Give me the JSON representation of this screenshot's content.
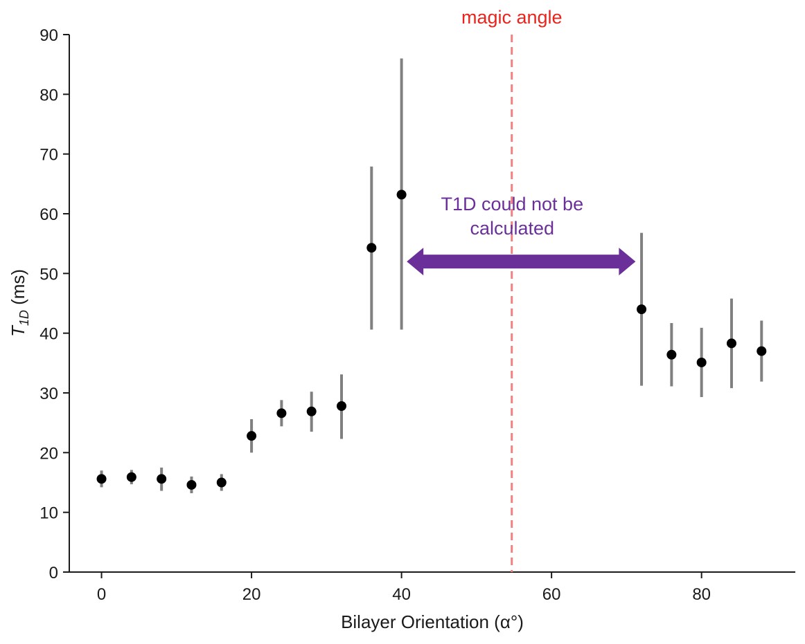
{
  "chart_data": {
    "type": "scatter",
    "xlabel": "Bilayer Orientation (α°)",
    "ylabel": "T",
    "ylabel_sub": "1D",
    "ylabel_unit": " (ms)",
    "xlim": [
      -4.3,
      92.5
    ],
    "ylim": [
      0,
      90
    ],
    "x_ticks": [
      0,
      20,
      40,
      60,
      80
    ],
    "y_ticks": [
      0,
      10,
      20,
      30,
      40,
      50,
      60,
      70,
      80,
      90
    ],
    "x": [
      0,
      4,
      8,
      12,
      16,
      20,
      24,
      28,
      32,
      36,
      40,
      72,
      76,
      80,
      84,
      88
    ],
    "y": [
      15.6,
      15.9,
      15.6,
      14.6,
      15.0,
      22.8,
      26.6,
      26.9,
      27.8,
      54.3,
      63.2,
      44.0,
      36.4,
      35.1,
      38.3,
      37.0
    ],
    "err_low": [
      14.2,
      14.7,
      13.6,
      13.2,
      13.6,
      20.0,
      24.4,
      23.5,
      22.3,
      40.6,
      40.6,
      31.2,
      31.1,
      29.3,
      30.8,
      31.9
    ],
    "err_high": [
      17.0,
      17.1,
      17.5,
      16.0,
      16.4,
      25.6,
      28.8,
      30.2,
      33.1,
      67.9,
      86.0,
      56.8,
      41.7,
      40.9,
      45.8,
      42.1
    ],
    "marker_color": "#000000",
    "errorbar_color": "#808080",
    "grid": false,
    "annotations": {
      "magic_angle": {
        "label": "magic angle",
        "x": 54.7,
        "color": "#f08080",
        "text_color": "#e8241d"
      },
      "range_arrow": {
        "x_from": 40.7,
        "x_to": 71.2,
        "y": 52,
        "color": "#6b2f9a"
      },
      "note": {
        "line1": "T1D could not be",
        "line2": "calculated",
        "color": "#6b2f9a"
      }
    }
  }
}
